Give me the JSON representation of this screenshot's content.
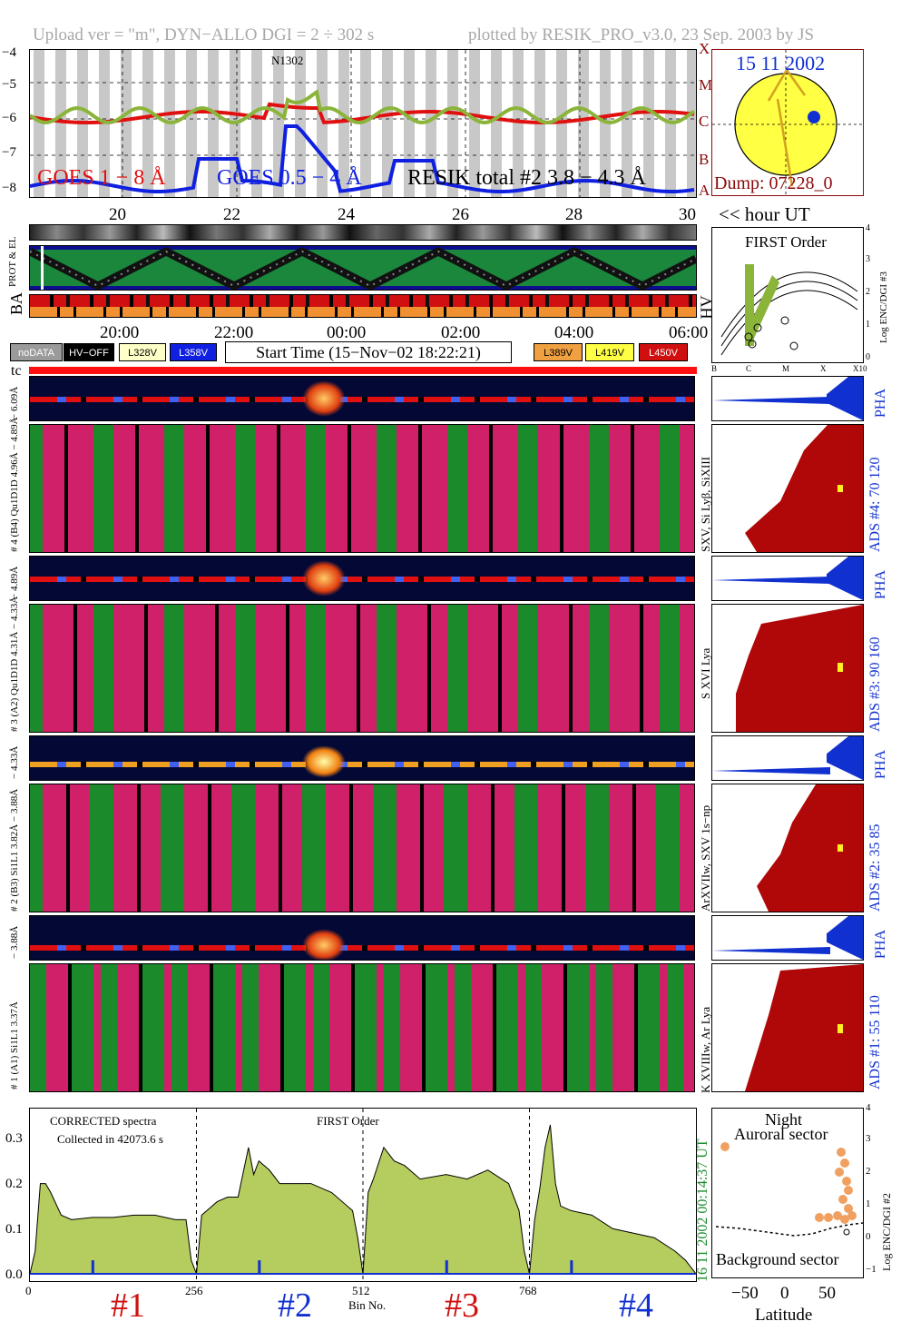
{
  "header": {
    "left": "Upload ver = \"m\", DYN−ALLO DGI =   2 ÷ 302 s",
    "right": "plotted by RESIK_PRO_v3.0, 23 Sep. 2003 by JS"
  },
  "goes_panel": {
    "ytick_labels": [
      "−4",
      "−5",
      "−6",
      "−7",
      "−8"
    ],
    "class_labels": [
      "X",
      "M",
      "C",
      "B",
      "A"
    ],
    "xtick_labels": [
      "20",
      "22",
      "24",
      "26",
      "28",
      "30"
    ],
    "noaa_label": "N1302",
    "legend_goes_long": "GOES 1 − 8 Å",
    "legend_goes_short": "GOES 0.5 − 4 Å",
    "legend_resik": "RESIK total #2  3.8 − 4.3 Å",
    "hour_label": "<< hour UT",
    "colors": {
      "goes_long": "#e01010",
      "goes_short": "#1020e0",
      "resik": "#8ab43a",
      "resik_alt": "#f0a060"
    }
  },
  "sun_panel": {
    "date": "15 11 2002",
    "dump": "Dump: 07228_0",
    "colors": {
      "disk": "#ffff44",
      "spot": "#1030d0",
      "date": "#1030d0",
      "dump": "#8b0a0a"
    }
  },
  "status_panel": {
    "label_prot_el": "PROT & EL",
    "label_ba": "BA",
    "label_hv": "HV",
    "time_ticks": [
      "20:00",
      "22:00",
      "00:00",
      "02:00",
      "04:00",
      "06:00"
    ]
  },
  "badges": {
    "nodata": "noDATA",
    "hv_off": "HV−OFF",
    "l328": "L328V",
    "l358": "L358V",
    "start_time": "Start Time (15−Nov−02 18:22:21)",
    "l389": "L389V",
    "l419": "L419V",
    "l450": "L450V",
    "colors": {
      "nodata": "#9a9a9a",
      "hv_off": "#000000",
      "l328": "#ffffc8",
      "l358": "#1020e0",
      "l389": "#f0a040",
      "l419": "#ffff44",
      "l450": "#d01010"
    }
  },
  "first_order_panel": {
    "title": "FIRST Order",
    "ylabel": "Log ENC/DGI #3",
    "yticks": [
      "4",
      "3",
      "2",
      "1",
      "0"
    ],
    "xticks": [
      "B",
      "C",
      "M",
      "X",
      "X10"
    ]
  },
  "tc_label": "tc",
  "channels": [
    {
      "pha_label": "− 6.09Å",
      "spec_label": "# 4 (B4) Qu1D1D 4.96Å − 4.89Å",
      "lines": "SXV, Si Lyβ, SiXIII",
      "ads": "ADS #4:   70 120",
      "pha": "PHA"
    },
    {
      "pha_label": "− 4.89Å",
      "spec_label": "# 3 (A2) Qu1D1D 4.31Å − 4.33Å",
      "lines": "S XVI Lya",
      "ads": "ADS #3:   90 160",
      "pha": "PHA"
    },
    {
      "pha_label": "− 4.33Å",
      "spec_label": "# 2 (B3) Si1L1 3.82Å − 3.88Å",
      "lines": "ArXVIIw, SXV 1s−np",
      "ads": "ADS #2:   35 85",
      "pha": "PHA"
    },
    {
      "pha_label": "− 3.88Å",
      "spec_label": "# 1 (A1) Si1L1 3.37Å",
      "lines": "K XVIIIw, Ar Lya",
      "ads": "ADS #1:   55 110",
      "pha": "PHA"
    }
  ],
  "spectrum_panel": {
    "title1": "CORRECTED spectra",
    "title2": "Collected in 42073.6 s",
    "title3": "FIRST Order",
    "ytick_labels": [
      "0.0",
      "0.1",
      "0.2",
      "0.3"
    ],
    "xtick_labels": [
      "0",
      "256",
      "512",
      "768"
    ],
    "xlabel": "Bin No.",
    "channel_labels": [
      "#1",
      "#2",
      "#3",
      "#4"
    ],
    "channel_colors": [
      "#d01010",
      "#1030d0",
      "#d01010",
      "#1030d0"
    ],
    "timestamp": "16 11 2002        00:14:37 UT",
    "fill_color": "#b5cc5e"
  },
  "chart_data": {
    "type": "area",
    "title": "CORRECTED spectra",
    "xlabel": "Bin No.",
    "ylabel": "",
    "xlim": [
      0,
      1024
    ],
    "ylim": [
      0,
      0.35
    ],
    "grid": false,
    "series": [
      {
        "name": "#1",
        "x": [
          0,
          8,
          16,
          24,
          32,
          48,
          64,
          96,
          128,
          160,
          192,
          224,
          240,
          248,
          256
        ],
        "values": [
          0.0,
          0.05,
          0.2,
          0.2,
          0.18,
          0.13,
          0.12,
          0.125,
          0.125,
          0.13,
          0.13,
          0.12,
          0.12,
          0.03,
          0.0
        ]
      },
      {
        "name": "#2",
        "x": [
          256,
          264,
          272,
          288,
          304,
          320,
          336,
          344,
          352,
          368,
          384,
          400,
          432,
          464,
          496,
          504,
          512
        ],
        "values": [
          0.0,
          0.13,
          0.14,
          0.16,
          0.17,
          0.17,
          0.28,
          0.22,
          0.25,
          0.23,
          0.2,
          0.2,
          0.2,
          0.18,
          0.14,
          0.08,
          0.0
        ]
      },
      {
        "name": "#3",
        "x": [
          512,
          520,
          528,
          544,
          560,
          576,
          600,
          640,
          672,
          704,
          736,
          752,
          760,
          768
        ],
        "values": [
          0.0,
          0.18,
          0.21,
          0.28,
          0.25,
          0.24,
          0.21,
          0.22,
          0.21,
          0.23,
          0.2,
          0.14,
          0.05,
          0.0
        ]
      },
      {
        "name": "#4",
        "x": [
          768,
          776,
          784,
          792,
          800,
          808,
          816,
          832,
          864,
          896,
          928,
          960,
          992,
          1008,
          1024
        ],
        "values": [
          0.0,
          0.12,
          0.19,
          0.28,
          0.33,
          0.2,
          0.15,
          0.14,
          0.13,
          0.1,
          0.09,
          0.08,
          0.05,
          0.03,
          0.0
        ]
      }
    ]
  },
  "latitude_panel": {
    "title1": "Night",
    "title2": "Auroral sector",
    "bottom_label": "Background sector",
    "xlabel": "Latitude",
    "ylabel": "Log ENC/DGI #2",
    "xticks": [
      "−50",
      "0",
      "50"
    ],
    "yticks": [
      "4",
      "3",
      "2",
      "1",
      "0",
      "−1"
    ]
  }
}
